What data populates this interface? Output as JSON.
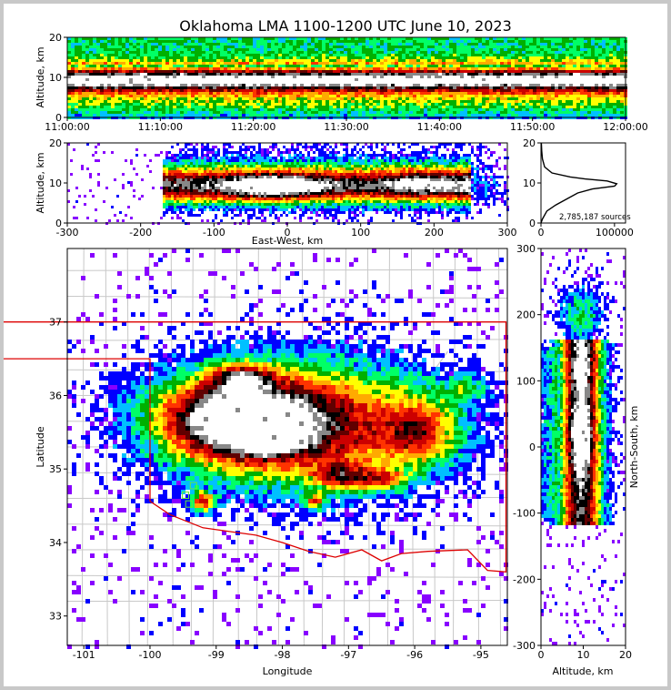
{
  "title": "Oklahoma LMA 1100-1200 UTC June 10, 2023",
  "chart_data": [
    {
      "id": "time-height",
      "type": "heatmap",
      "ylabel": "Altitude, km",
      "ylim": [
        0,
        20
      ],
      "yticks": [
        0,
        10,
        20
      ],
      "xticks": [
        "11:00:00",
        "11:10:00",
        "11:20:00",
        "11:30:00",
        "11:40:00",
        "11:50:00",
        "12:00:00"
      ]
    },
    {
      "id": "ew-altitude",
      "type": "heatmap",
      "xlabel": "East-West, km",
      "ylabel": "Altitude, km",
      "xlim": [
        -300,
        300
      ],
      "ylim": [
        0,
        20
      ],
      "xticks": [
        -300,
        -200,
        -100,
        0,
        100,
        200,
        300
      ],
      "yticks": [
        0,
        10,
        20
      ]
    },
    {
      "id": "altitude-histogram",
      "type": "line",
      "annotation": "2,785,187 sources",
      "xlim": [
        0,
        115000
      ],
      "ylim": [
        0,
        20
      ],
      "xticks": [
        "0",
        "100000"
      ],
      "yticks": [
        0,
        10,
        20
      ],
      "series": [
        {
          "x": [
            0,
            2000,
            8000,
            20000,
            35000,
            50000,
            70000,
            100000,
            103000,
            90000,
            60000,
            40000,
            15000,
            5000,
            2000,
            1000,
            500
          ],
          "y": [
            0,
            1,
            3,
            4.5,
            6,
            7.5,
            8.5,
            9.2,
            9.8,
            10.5,
            11,
            11.5,
            12.5,
            14,
            16,
            18,
            20
          ]
        }
      ]
    },
    {
      "id": "plan-view",
      "type": "heatmap",
      "xlabel": "Longitude",
      "ylabel": "Latitude",
      "xlim": [
        -101.25,
        -94.6
      ],
      "ylim": [
        32.6,
        38.0
      ],
      "xticks": [
        -101,
        -100,
        -99,
        -98,
        -97,
        -96,
        -95
      ],
      "yticks": [
        33,
        34,
        35,
        36,
        37
      ]
    },
    {
      "id": "ns-altitude",
      "type": "heatmap",
      "xlabel": "Altitude, km",
      "ylabel": "North-South, km",
      "xlim": [
        0,
        20
      ],
      "ylim": [
        -300,
        300
      ],
      "xticks": [
        0,
        10,
        20
      ],
      "yticks": [
        -300,
        -200,
        -100,
        0,
        100,
        200,
        300
      ]
    }
  ],
  "colors": {
    "ramp": [
      "#8800ff",
      "#0000ff",
      "#00c0ff",
      "#00ff66",
      "#00b000",
      "#ffff00",
      "#ffaa00",
      "#ff3300",
      "#cc0000",
      "#600000",
      "#000000",
      "#888888",
      "#ffffff"
    ],
    "state_border": "#dd0000",
    "county_lines": "#c8c8c8",
    "station": "#66ee33"
  }
}
